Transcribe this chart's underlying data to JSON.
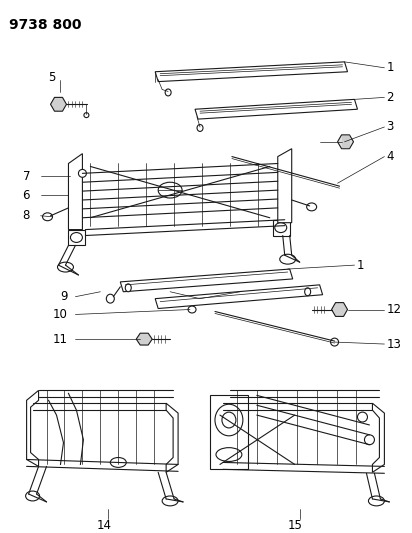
{
  "title": "9738 800",
  "background_color": "#ffffff",
  "line_color": "#1a1a1a",
  "label_color": "#000000",
  "title_fontsize": 10,
  "label_fontsize": 8.5,
  "fig_width": 4.12,
  "fig_height": 5.33,
  "dpi": 100
}
